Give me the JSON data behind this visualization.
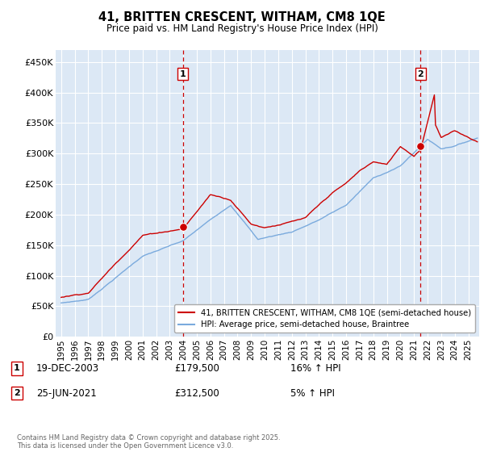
{
  "title": "41, BRITTEN CRESCENT, WITHAM, CM8 1QE",
  "subtitle": "Price paid vs. HM Land Registry's House Price Index (HPI)",
  "ylim": [
    0,
    470000
  ],
  "yticks": [
    0,
    50000,
    100000,
    150000,
    200000,
    250000,
    300000,
    350000,
    400000,
    450000
  ],
  "ytick_labels": [
    "£0",
    "£50K",
    "£100K",
    "£150K",
    "£200K",
    "£250K",
    "£300K",
    "£350K",
    "£400K",
    "£450K"
  ],
  "sale1_date": "19-DEC-2003",
  "sale1_price": 179500,
  "sale1_hpi": "16% ↑ HPI",
  "sale1_x": 2003.97,
  "sale2_date": "25-JUN-2021",
  "sale2_price": 312500,
  "sale2_hpi": "5% ↑ HPI",
  "sale2_x": 2021.48,
  "legend_line1": "41, BRITTEN CRESCENT, WITHAM, CM8 1QE (semi-detached house)",
  "legend_line2": "HPI: Average price, semi-detached house, Braintree",
  "footer": "Contains HM Land Registry data © Crown copyright and database right 2025.\nThis data is licensed under the Open Government Licence v3.0.",
  "line_color_red": "#cc0000",
  "line_color_blue": "#7aaadd",
  "plot_bg": "#dce8f5",
  "grid_color": "#ffffff",
  "vline_color": "#cc0000",
  "xlim_left": 1994.6,
  "xlim_right": 2025.8
}
